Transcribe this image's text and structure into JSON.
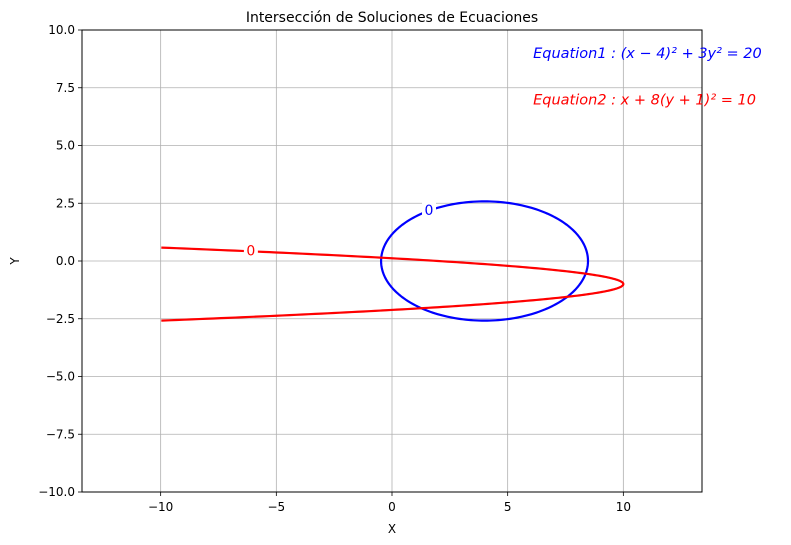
{
  "chart_data": {
    "type": "line",
    "title": "Intersección de Soluciones de Ecuaciones",
    "xlabel": "X",
    "ylabel": "Y",
    "xlim": [
      -13.4,
      13.4
    ],
    "ylim": [
      -10,
      10
    ],
    "xticks": [
      -10,
      -5,
      0,
      5,
      10
    ],
    "xtick_labels": [
      "−10",
      "−5",
      "0",
      "5",
      "10"
    ],
    "yticks": [
      -10,
      -7.5,
      -5,
      -2.5,
      0,
      2.5,
      5,
      7.5,
      10
    ],
    "ytick_labels": [
      "−10.0",
      "−7.5",
      "−5.0",
      "−2.5",
      "0.0",
      "2.5",
      "5.0",
      "7.5",
      "10.0"
    ],
    "grid": true,
    "series": [
      {
        "curve": "ellipse",
        "color": "#0000ff",
        "center": [
          4,
          0
        ],
        "semi_axes": [
          4.472,
          2.582
        ],
        "contour_label": "0",
        "contour_label_at": [
          1.6,
          2.2
        ]
      },
      {
        "curve": "parabola",
        "color": "#ff0000",
        "vertex": [
          10,
          -1
        ],
        "y_range": [
          -2.58,
          0.58
        ],
        "contour_label": "0",
        "contour_label_at": [
          -6.1,
          0.45
        ]
      }
    ],
    "annotations": [
      {
        "text": "Equation1 : (x − 4)² + 3y² = 20",
        "color": "#0000ff",
        "at": [
          6.1,
          9.0
        ]
      },
      {
        "text": "Equation2 : x + 8(y + 1)² = 10",
        "color": "#ff0000",
        "at": [
          6.1,
          7.0
        ]
      }
    ]
  }
}
